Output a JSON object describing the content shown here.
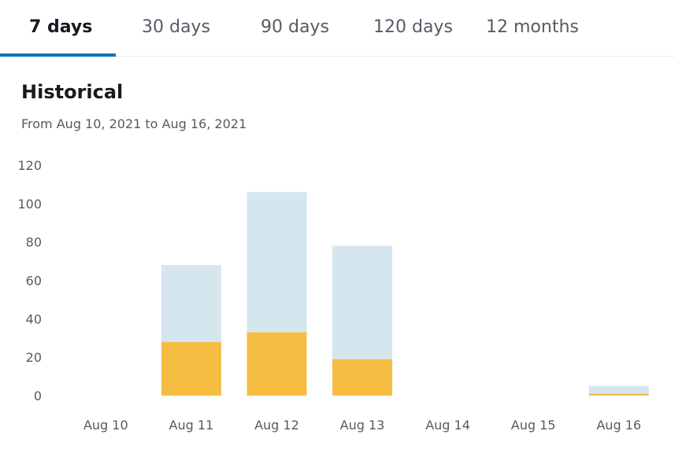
{
  "tabs": [
    {
      "label": "7 days",
      "active": true
    },
    {
      "label": "30 days",
      "active": false
    },
    {
      "label": "90 days",
      "active": false
    },
    {
      "label": "120 days",
      "active": false
    },
    {
      "label": "12 months",
      "active": false
    }
  ],
  "colors": {
    "accent": "#0073bb",
    "series_total": "#d5e6ef",
    "series_highlight": "#f5bd42",
    "axis_text": "#545b64"
  },
  "chart_data": {
    "type": "bar",
    "stacked": true,
    "title": "Historical",
    "subtitle": "From Aug 10, 2021 to Aug 16, 2021",
    "categories": [
      "Aug 10",
      "Aug 11",
      "Aug 12",
      "Aug 13",
      "Aug 14",
      "Aug 15",
      "Aug 16"
    ],
    "series": [
      {
        "values": [
          0,
          28,
          33,
          19,
          0,
          0,
          1
        ],
        "color": "#f5bd42"
      },
      {
        "values": [
          0,
          40,
          73,
          59,
          0,
          0,
          4
        ],
        "color": "#d5e6ef"
      }
    ],
    "ylim": [
      0,
      120
    ],
    "yticks": [
      0,
      20,
      40,
      60,
      80,
      100,
      120
    ],
    "xlabel": "",
    "ylabel": "",
    "grid": false
  }
}
